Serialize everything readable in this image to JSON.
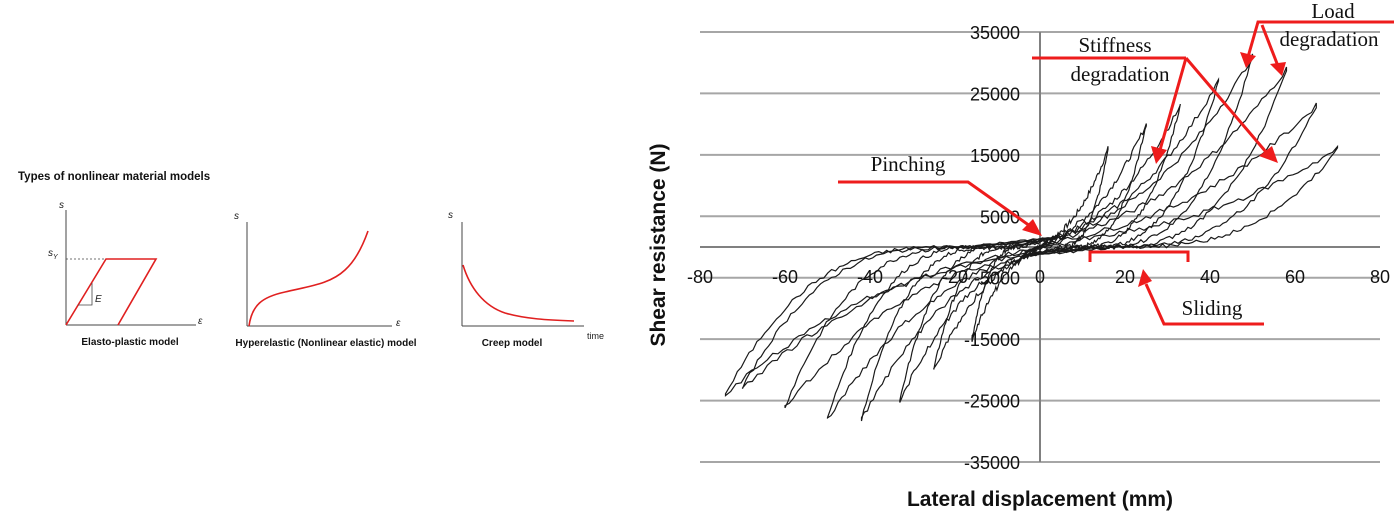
{
  "left": {
    "title": "Types of nonlinear material models",
    "models": [
      {
        "caption": "Elasto-plastic model",
        "y_label": "s",
        "x_label": "ε",
        "yield_label": "s",
        "yield_sub": "Y",
        "slope_label": "E"
      },
      {
        "caption": "Hyperelastic (Nonlinear elastic) model",
        "y_label": "s",
        "x_label": "ε"
      },
      {
        "caption": "Creep model",
        "y_label": "s",
        "x_label": "time"
      }
    ]
  },
  "chart_data": {
    "type": "line",
    "title": "",
    "xlabel": "Lateral displacement (mm)",
    "ylabel": "Shear resistance (N)",
    "xlim": [
      -80,
      80
    ],
    "ylim": [
      -35000,
      35000
    ],
    "x_ticks": [
      "-80",
      "-60",
      "-40",
      "-20",
      "0",
      "20",
      "40",
      "60",
      "80"
    ],
    "y_ticks": [
      "35000",
      "25000",
      "15000",
      "5000",
      "-5000",
      "-15000",
      "-25000",
      "-35000"
    ],
    "grid": true,
    "series_color": "#1a1a1a",
    "series": [
      {
        "peak_pos": [
          16,
          16000
        ],
        "peak_neg": [
          -16,
          -15000
        ]
      },
      {
        "peak_pos": [
          25,
          20000
        ],
        "peak_neg": [
          -25,
          -20000
        ]
      },
      {
        "peak_pos": [
          33,
          23000
        ],
        "peak_neg": [
          -33,
          -25000
        ]
      },
      {
        "peak_pos": [
          42,
          27000
        ],
        "peak_neg": [
          -42,
          -28000
        ]
      },
      {
        "peak_pos": [
          50,
          31000
        ],
        "peak_neg": [
          -50,
          -28000
        ]
      },
      {
        "peak_pos": [
          58,
          29000
        ],
        "peak_neg": [
          -60,
          -26000
        ]
      },
      {
        "peak_pos": [
          65,
          23000
        ],
        "peak_neg": [
          -70,
          -23000
        ]
      },
      {
        "peak_pos": [
          70,
          16000
        ],
        "peak_neg": [
          -74,
          -24000
        ]
      }
    ],
    "annotations": [
      {
        "text_lines": [
          "Load",
          "degradation"
        ],
        "color": "#ee1c1c"
      },
      {
        "text_lines": [
          "Stiffness",
          "degradation"
        ],
        "color": "#ee1c1c"
      },
      {
        "text_lines": [
          "Pinching"
        ],
        "color": "#ee1c1c"
      },
      {
        "text_lines": [
          "Sliding"
        ],
        "color": "#ee1c1c"
      }
    ]
  },
  "colors": {
    "red": "#e02020",
    "annotation_red": "#ee1c1c",
    "grid": "#a6a6a6",
    "axis": "#808080",
    "curve": "#1a1a1a"
  }
}
